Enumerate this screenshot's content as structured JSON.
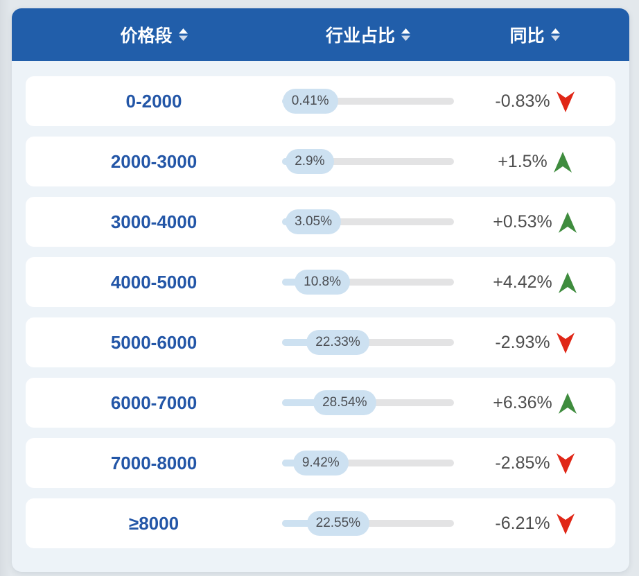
{
  "colors": {
    "header_bg": "#215eaa",
    "panel_bg": "#edf3f8",
    "row_bg": "#ffffff",
    "price_text": "#2356a7",
    "pill_bg": "#cde1f1",
    "track_bg": "#e3e3e4",
    "trend_up": "#3f8c3e",
    "trend_down": "#e02717",
    "sort_up": "#ffffff",
    "sort_down": "#cfdaea"
  },
  "table": {
    "columns": [
      {
        "label": "价格段"
      },
      {
        "label": "行业占比"
      },
      {
        "label": "同比"
      }
    ],
    "rows": [
      {
        "price_range": "0-2000",
        "share_label": "0.41%",
        "share_value": 0.41,
        "change_label": "-0.83%",
        "trend": "down"
      },
      {
        "price_range": "2000-3000",
        "share_label": "2.9%",
        "share_value": 2.9,
        "change_label": "+1.5%",
        "trend": "up"
      },
      {
        "price_range": "3000-4000",
        "share_label": "3.05%",
        "share_value": 3.05,
        "change_label": "+0.53%",
        "trend": "up"
      },
      {
        "price_range": "4000-5000",
        "share_label": "10.8%",
        "share_value": 10.8,
        "change_label": "+4.42%",
        "trend": "up"
      },
      {
        "price_range": "5000-6000",
        "share_label": "22.33%",
        "share_value": 22.33,
        "change_label": "-2.93%",
        "trend": "down"
      },
      {
        "price_range": "6000-7000",
        "share_label": "28.54%",
        "share_value": 28.54,
        "change_label": "+6.36%",
        "trend": "up"
      },
      {
        "price_range": "7000-8000",
        "share_label": "9.42%",
        "share_value": 9.42,
        "change_label": "-2.85%",
        "trend": "down"
      },
      {
        "price_range": "≥8000",
        "share_label": "22.55%",
        "share_value": 22.55,
        "change_label": "-6.21%",
        "trend": "down"
      }
    ]
  },
  "chart_data": {
    "type": "table",
    "title": "",
    "columns": [
      "价格段",
      "行业占比",
      "同比"
    ],
    "rows": [
      [
        "0-2000",
        "0.41%",
        "-0.83%"
      ],
      [
        "2000-3000",
        "2.9%",
        "+1.5%"
      ],
      [
        "3000-4000",
        "3.05%",
        "+0.53%"
      ],
      [
        "4000-5000",
        "10.8%",
        "+4.42%"
      ],
      [
        "5000-6000",
        "22.33%",
        "-2.93%"
      ],
      [
        "6000-7000",
        "28.54%",
        "+6.36%"
      ],
      [
        "7000-8000",
        "9.42%",
        "-2.85%"
      ],
      [
        "≥8000",
        "22.55%",
        "-6.21%"
      ]
    ],
    "share_values_percent": [
      0.41,
      2.9,
      3.05,
      10.8,
      22.33,
      28.54,
      9.42,
      22.55
    ],
    "yoy_change_percent": [
      -0.83,
      1.5,
      0.53,
      4.42,
      -2.93,
      6.36,
      -2.85,
      -6.21
    ],
    "layout": {
      "share_bar_range_percent": [
        0,
        100
      ],
      "sortable_columns": true
    }
  }
}
